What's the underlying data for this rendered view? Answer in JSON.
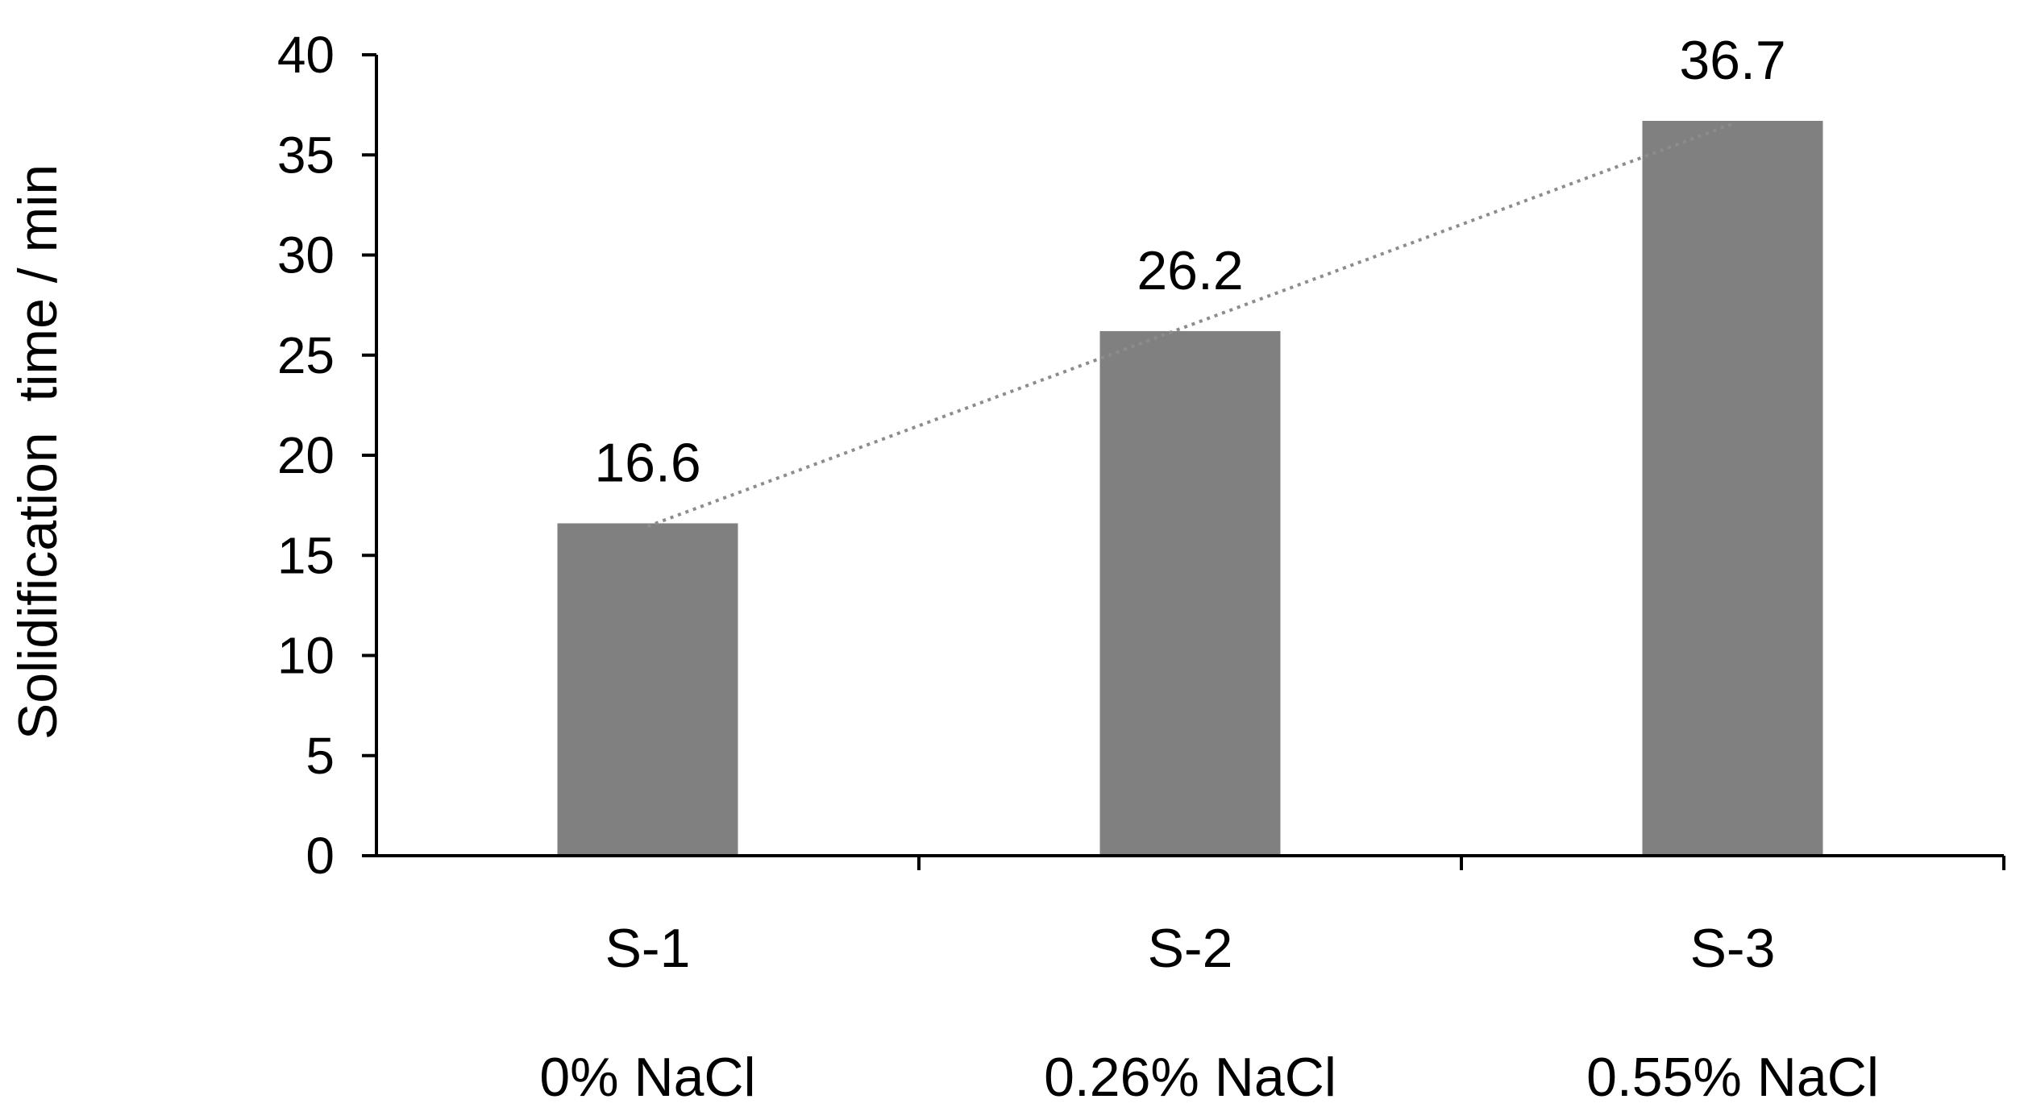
{
  "chart_data": {
    "type": "bar",
    "categories": [
      "S-1",
      "S-2",
      "S-3"
    ],
    "category_sublabels": [
      "0% NaCl",
      "0.26% NaCl",
      "0.55% NaCl"
    ],
    "values": [
      16.6,
      26.2,
      36.7
    ],
    "data_labels": [
      "16.6",
      "26.2",
      "36.7"
    ],
    "title": "",
    "xlabel": "",
    "ylabel": "Solidification  time / min",
    "ylim": [
      0,
      40
    ],
    "yticks": [
      0,
      5,
      10,
      15,
      20,
      25,
      30,
      35,
      40
    ],
    "grid": false,
    "legend": "none",
    "trendline": "linear-dotted",
    "colors": {
      "bar": "#808080",
      "axis": "#000000",
      "trendline": "#8c8c8c"
    }
  }
}
